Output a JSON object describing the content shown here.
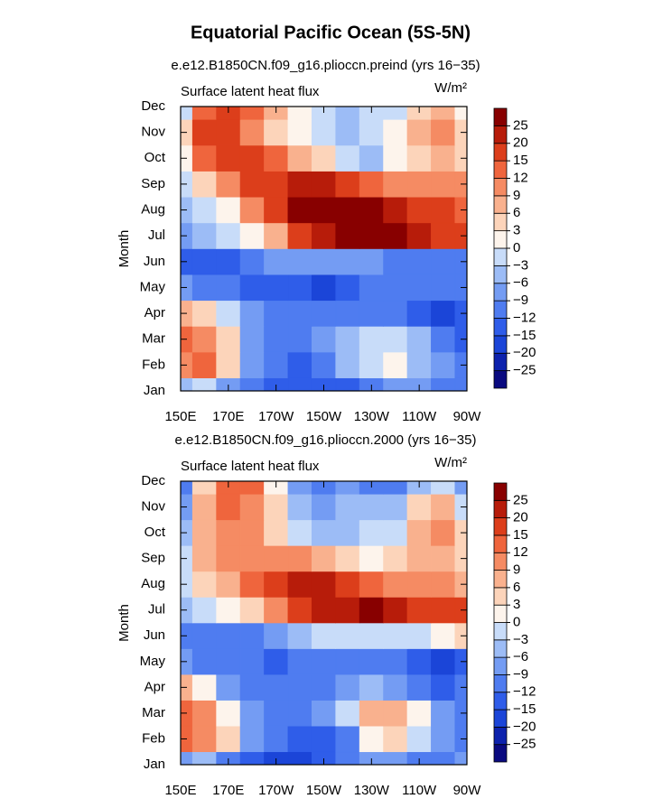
{
  "title": "Equatorial Pacific Ocean (5S-5N)",
  "chart_data": [
    {
      "type": "contour",
      "title": "e.e12.B1850CN.f09_g16.plioccn.preind (yrs 16−35)",
      "left_string": "Surface latent heat flux",
      "units": "W/m²",
      "y_label": "Month",
      "x": [
        150,
        160,
        170,
        180,
        190,
        200,
        210,
        220,
        230,
        240,
        250,
        260,
        270
      ],
      "xlim": [
        150,
        270
      ],
      "xticks": [
        {
          "value": 150,
          "label": "150E"
        },
        {
          "value": 170,
          "label": "170E"
        },
        {
          "value": 190,
          "label": "170W"
        },
        {
          "value": 210,
          "label": "150W"
        },
        {
          "value": 230,
          "label": "130W"
        },
        {
          "value": 250,
          "label": "110W"
        },
        {
          "value": 270,
          "label": "90W"
        }
      ],
      "categories": [
        "Jan",
        "Feb",
        "Mar",
        "Apr",
        "May",
        "Jun",
        "Jul",
        "Aug",
        "Sep",
        "Oct",
        "Nov",
        "Dec"
      ],
      "z": [
        [
          -6,
          -3,
          -9,
          -12,
          -15,
          -15,
          -15,
          -15,
          -12,
          -9,
          -9,
          -12,
          -12
        ],
        [
          9,
          12,
          3,
          -9,
          -12,
          -15,
          -12,
          -6,
          -3,
          0,
          -6,
          -9,
          -12
        ],
        [
          12,
          9,
          3,
          -9,
          -12,
          -12,
          -9,
          -6,
          -3,
          -3,
          -6,
          -12,
          -15
        ],
        [
          6,
          3,
          -3,
          -9,
          -12,
          -12,
          -12,
          -12,
          -12,
          -12,
          -15,
          -20,
          -15
        ],
        [
          -9,
          -12,
          -12,
          -15,
          -15,
          -15,
          -20,
          -15,
          -12,
          -12,
          -12,
          -12,
          -12
        ],
        [
          -15,
          -15,
          -15,
          -12,
          -9,
          -9,
          -9,
          -9,
          -9,
          -12,
          -12,
          -12,
          -12
        ],
        [
          -9,
          -6,
          -3,
          0,
          6,
          15,
          20,
          25,
          25,
          25,
          20,
          15,
          15
        ],
        [
          -6,
          -3,
          0,
          9,
          15,
          25,
          25,
          25,
          25,
          20,
          15,
          15,
          12
        ],
        [
          -3,
          3,
          9,
          15,
          15,
          20,
          20,
          15,
          12,
          9,
          9,
          9,
          9
        ],
        [
          0,
          12,
          15,
          15,
          12,
          6,
          3,
          -3,
          -6,
          0,
          3,
          6,
          3
        ],
        [
          3,
          15,
          15,
          9,
          3,
          0,
          -3,
          -6,
          -3,
          0,
          6,
          9,
          3
        ],
        [
          -3,
          12,
          15,
          12,
          6,
          0,
          -3,
          -6,
          -3,
          -3,
          3,
          6,
          0
        ]
      ],
      "levels": [
        {
          "value": -25,
          "label": "−25"
        },
        {
          "value": -20,
          "label": "−20"
        },
        {
          "value": -15,
          "label": "−15"
        },
        {
          "value": -12,
          "label": "−12"
        },
        {
          "value": -9,
          "label": "−9"
        },
        {
          "value": -6,
          "label": "−6"
        },
        {
          "value": -3,
          "label": "−3"
        },
        0,
        3,
        6,
        9,
        12,
        15,
        20,
        25
      ],
      "colors": [
        "#0a0a80",
        "#0d22ad",
        "#1b45d8",
        "#2f5de9",
        "#4f7cf0",
        "#749cf3",
        "#9cbcf6",
        "#c8dcf9",
        "#fdf4ec",
        "#fcd4ba",
        "#f9b18e",
        "#f58b63",
        "#ef653d",
        "#dc3e1b",
        "#b71c0a",
        "#880000"
      ]
    },
    {
      "type": "contour",
      "title": "e.e12.B1850CN.f09_g16.plioccn.2000 (yrs 16−35)",
      "left_string": "Surface latent heat flux",
      "units": "W/m²",
      "y_label": "Month",
      "x": [
        150,
        160,
        170,
        180,
        190,
        200,
        210,
        220,
        230,
        240,
        250,
        260,
        270
      ],
      "xlim": [
        150,
        270
      ],
      "xticks": [
        {
          "value": 150,
          "label": "150E"
        },
        {
          "value": 170,
          "label": "170E"
        },
        {
          "value": 190,
          "label": "170W"
        },
        {
          "value": 210,
          "label": "150W"
        },
        {
          "value": 230,
          "label": "130W"
        },
        {
          "value": 250,
          "label": "110W"
        },
        {
          "value": 270,
          "label": "90W"
        }
      ],
      "categories": [
        "Jan",
        "Feb",
        "Mar",
        "Apr",
        "May",
        "Jun",
        "Jul",
        "Aug",
        "Sep",
        "Oct",
        "Nov",
        "Dec"
      ],
      "z": [
        [
          -9,
          -6,
          -12,
          -15,
          -20,
          -20,
          -15,
          -12,
          -9,
          -9,
          -12,
          -12,
          -9
        ],
        [
          12,
          9,
          3,
          -9,
          -12,
          -15,
          -15,
          -12,
          0,
          3,
          -3,
          -9,
          -12
        ],
        [
          12,
          9,
          0,
          -9,
          -12,
          -12,
          -9,
          -3,
          6,
          6,
          0,
          -9,
          -12
        ],
        [
          6,
          0,
          -9,
          -12,
          -12,
          -12,
          -12,
          -9,
          -6,
          -9,
          -12,
          -15,
          -12
        ],
        [
          -9,
          -12,
          -12,
          -12,
          -15,
          -12,
          -12,
          -12,
          -12,
          -12,
          -15,
          -20,
          -15
        ],
        [
          -12,
          -12,
          -12,
          -12,
          -9,
          -6,
          -3,
          -3,
          -3,
          -3,
          -3,
          0,
          3
        ],
        [
          -6,
          -3,
          0,
          3,
          9,
          15,
          20,
          20,
          25,
          20,
          15,
          15,
          15
        ],
        [
          -3,
          3,
          6,
          12,
          15,
          20,
          20,
          15,
          12,
          9,
          9,
          9,
          6
        ],
        [
          -3,
          6,
          9,
          9,
          9,
          9,
          6,
          3,
          0,
          3,
          6,
          6,
          3
        ],
        [
          -6,
          6,
          9,
          9,
          3,
          -3,
          -6,
          -6,
          -3,
          -3,
          6,
          9,
          3
        ],
        [
          -9,
          6,
          12,
          9,
          3,
          -6,
          -9,
          -6,
          -6,
          -6,
          3,
          6,
          -3
        ],
        [
          -12,
          3,
          12,
          12,
          0,
          -9,
          -12,
          -9,
          -12,
          -12,
          -6,
          -3,
          -9
        ]
      ],
      "levels": [
        {
          "value": -25,
          "label": "−25"
        },
        {
          "value": -20,
          "label": "−20"
        },
        {
          "value": -15,
          "label": "−15"
        },
        {
          "value": -12,
          "label": "−12"
        },
        {
          "value": -9,
          "label": "−9"
        },
        {
          "value": -6,
          "label": "−6"
        },
        {
          "value": -3,
          "label": "−3"
        },
        0,
        3,
        6,
        9,
        12,
        15,
        20,
        25
      ],
      "colors": [
        "#0a0a80",
        "#0d22ad",
        "#1b45d8",
        "#2f5de9",
        "#4f7cf0",
        "#749cf3",
        "#9cbcf6",
        "#c8dcf9",
        "#fdf4ec",
        "#fcd4ba",
        "#f9b18e",
        "#f58b63",
        "#ef653d",
        "#dc3e1b",
        "#b71c0a",
        "#880000"
      ]
    }
  ]
}
